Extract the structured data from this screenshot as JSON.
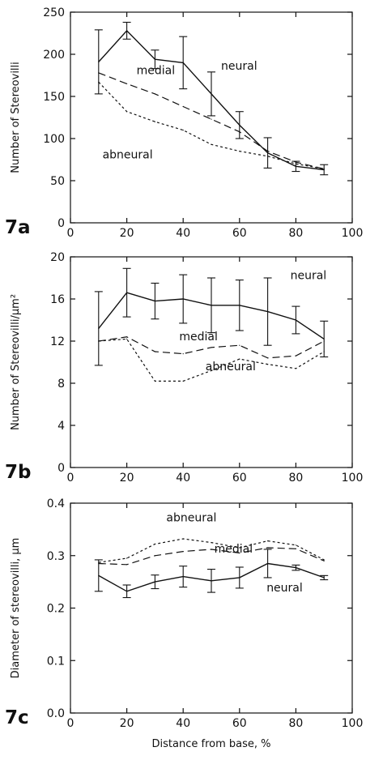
{
  "chart_data": [
    {
      "type": "line",
      "panel_label": "7a",
      "ylabel": "Number of Stereovilli",
      "xlabel": "",
      "xlim": [
        0,
        100
      ],
      "ylim": [
        0,
        250
      ],
      "x_ticks": [
        "0",
        "20",
        "40",
        "60",
        "80",
        "100"
      ],
      "y_ticks": [
        "0",
        "50",
        "100",
        "150",
        "200",
        "250"
      ],
      "grid": false,
      "x": [
        10,
        20,
        30,
        40,
        50,
        60,
        70,
        80,
        90
      ],
      "series": [
        {
          "name": "neural",
          "style": "solid",
          "values": [
            191,
            228,
            194,
            190,
            153,
            116,
            83,
            67,
            63
          ],
          "error": [
            38,
            10,
            11,
            31,
            26,
            16,
            18,
            6,
            6
          ]
        },
        {
          "name": "medial",
          "style": "dashed",
          "values": [
            178,
            165,
            153,
            138,
            123,
            108,
            85,
            72,
            64
          ]
        },
        {
          "name": "abneural",
          "style": "dotted",
          "values": [
            167,
            132,
            120,
            110,
            93,
            85,
            79,
            70,
            64
          ]
        }
      ]
    },
    {
      "type": "line",
      "panel_label": "7b",
      "ylabel": "Number of Stereovilli/μm²",
      "xlabel": "",
      "xlim": [
        0,
        100
      ],
      "ylim": [
        0,
        20
      ],
      "x_ticks": [
        "0",
        "20",
        "40",
        "60",
        "80",
        "100"
      ],
      "y_ticks": [
        "0",
        "4",
        "8",
        "12",
        "16",
        "20"
      ],
      "grid": false,
      "x": [
        10,
        20,
        30,
        40,
        50,
        60,
        70,
        80,
        90
      ],
      "series": [
        {
          "name": "neural",
          "style": "solid",
          "values": [
            13.2,
            16.6,
            15.8,
            16.0,
            15.4,
            15.4,
            14.8,
            14.0,
            12.2
          ],
          "error": [
            3.5,
            2.3,
            1.7,
            2.3,
            2.6,
            2.4,
            3.2,
            1.3,
            1.7
          ]
        },
        {
          "name": "medial",
          "style": "dashed",
          "values": [
            12.0,
            12.4,
            11.0,
            10.8,
            11.4,
            11.6,
            10.4,
            10.6,
            12.0
          ]
        },
        {
          "name": "abneural",
          "style": "dotted",
          "values": [
            12.0,
            12.2,
            8.2,
            8.2,
            9.2,
            10.3,
            9.8,
            9.4,
            11.0
          ]
        }
      ]
    },
    {
      "type": "line",
      "panel_label": "7c",
      "ylabel": "Diameter of stereovilli, μm",
      "xlabel": "Distance from base, %",
      "xlim": [
        0,
        100
      ],
      "ylim": [
        0,
        0.4
      ],
      "x_ticks": [
        "0",
        "20",
        "40",
        "60",
        "80",
        "100"
      ],
      "y_ticks": [
        "0.0",
        "0.1",
        "0.2",
        "0.3",
        "0.4"
      ],
      "grid": false,
      "x": [
        10,
        20,
        30,
        40,
        50,
        60,
        70,
        80,
        90
      ],
      "series": [
        {
          "name": "neural",
          "style": "solid",
          "values": [
            0.262,
            0.232,
            0.25,
            0.26,
            0.252,
            0.258,
            0.285,
            0.277,
            0.258
          ],
          "error": [
            0.03,
            0.012,
            0.013,
            0.02,
            0.022,
            0.02,
            0.027,
            0.005,
            0.004
          ]
        },
        {
          "name": "medial",
          "style": "dashed",
          "values": [
            0.285,
            0.283,
            0.3,
            0.308,
            0.312,
            0.305,
            0.315,
            0.313,
            0.29
          ]
        },
        {
          "name": "abneural",
          "style": "dotted",
          "values": [
            0.287,
            0.295,
            0.322,
            0.332,
            0.325,
            0.315,
            0.328,
            0.32,
            0.292
          ]
        }
      ]
    }
  ]
}
